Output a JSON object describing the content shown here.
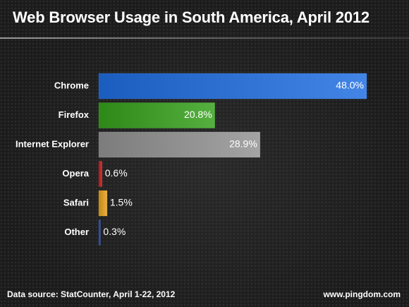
{
  "title": "Web Browser Usage in South America, April 2012",
  "footer": {
    "source": "Data source: StatCounter, April 1-22, 2012",
    "site": "www.pingdom.com"
  },
  "chart_data": {
    "type": "bar",
    "orientation": "horizontal",
    "title": "Web Browser Usage in South America, April 2012",
    "categories": [
      "Chrome",
      "Firefox",
      "Internet Explorer",
      "Opera",
      "Safari",
      "Other"
    ],
    "values": [
      48.0,
      20.8,
      28.9,
      0.6,
      1.5,
      0.3
    ],
    "value_labels": [
      "48.0%",
      "20.8%",
      "28.9%",
      "0.6%",
      "1.5%",
      "0.3%"
    ],
    "colors": [
      "#2d6fd0",
      "#3f9a2a",
      "#8e8e8e",
      "#b92727",
      "#d49a2a",
      "#2a4fa8"
    ],
    "xlim": [
      0,
      48
    ],
    "grid": false,
    "legend": "none"
  }
}
